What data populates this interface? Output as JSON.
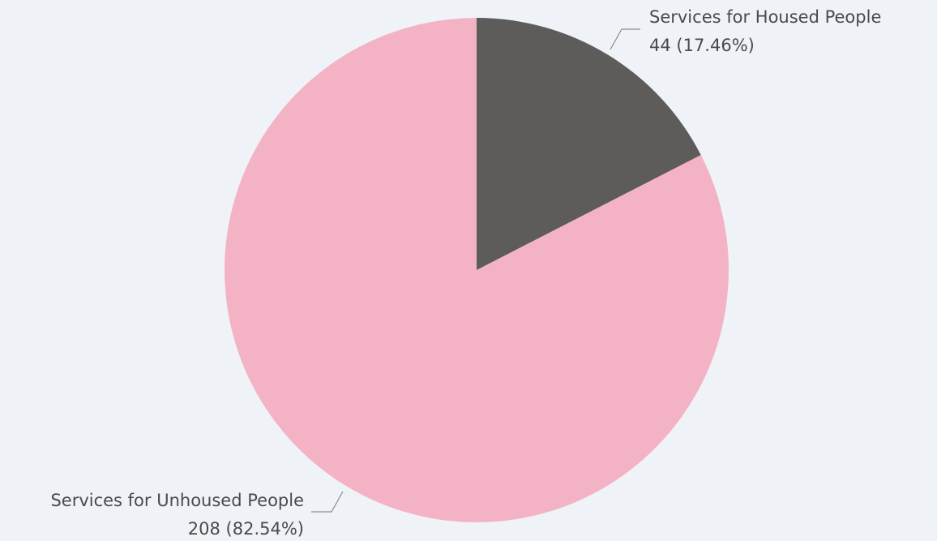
{
  "chart_data": {
    "type": "pie",
    "categories": [
      "Services for Housed People",
      "Services for Unhoused People"
    ],
    "values": [
      44,
      208
    ],
    "percent_labels": [
      "17.46%",
      "82.54%"
    ],
    "value_labels": [
      "44 (17.46%)",
      "208 (82.54%)"
    ],
    "colors": [
      "#5e5c5a",
      "#f4b3c4"
    ],
    "start_angle_deg": 0,
    "direction": "clockwise",
    "background": "#eff3f8"
  }
}
